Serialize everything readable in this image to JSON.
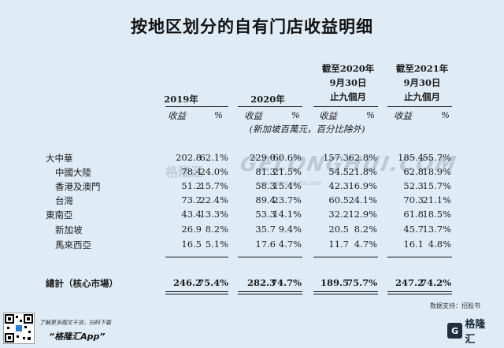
{
  "title": "按地区划分的自有门店收益明细",
  "periods": {
    "p2019": "2019年",
    "p2020": "2020年",
    "p9m2020": [
      "截至2020年",
      "9月30日",
      "止九個月"
    ],
    "p9m2021": [
      "截至2021年",
      "9月30日",
      "止九個月"
    ]
  },
  "subheaders": {
    "revenue": "收益",
    "percent": "%"
  },
  "units_note": "(新加坡百萬元，百分比除外)",
  "rows": [
    {
      "label": "大中華",
      "values": [
        "202.8",
        "62.1%",
        "229.0",
        "60.6%",
        "157.3",
        "62.8%",
        "185.4",
        "55.7%"
      ]
    },
    {
      "label": "中國大陸",
      "values": [
        "78.4",
        "24.0%",
        "81.3",
        "21.5%",
        "54.5",
        "21.8%",
        "62.8",
        "18.9%"
      ]
    },
    {
      "label": "香港及澳門",
      "values": [
        "51.2",
        "15.7%",
        "58.3",
        "15.4%",
        "42.3",
        "16.9%",
        "52.3",
        "15.7%"
      ]
    },
    {
      "label": "台灣",
      "values": [
        "73.2",
        "22.4%",
        "89.4",
        "23.7%",
        "60.5",
        "24.1%",
        "70.3",
        "21.1%"
      ]
    },
    {
      "label": "東南亞",
      "values": [
        "43.4",
        "13.3%",
        "53.3",
        "14.1%",
        "32.2",
        "12.9%",
        "61.8",
        "18.5%"
      ]
    },
    {
      "label": "新加坡",
      "values": [
        "26.9",
        "8.2%",
        "35.7",
        "9.4%",
        "20.5",
        "8.2%",
        "45.7",
        "13.7%"
      ]
    },
    {
      "label": "馬來西亞",
      "values": [
        "16.5",
        "5.1%",
        "17.6",
        "4.7%",
        "11.7",
        "4.7%",
        "16.1",
        "4.8%"
      ]
    }
  ],
  "total": {
    "label": "總計（核心市場）",
    "values": [
      "246.2",
      "75.4%",
      "282.3",
      "74.7%",
      "189.5",
      "75.7%",
      "247.2",
      "74.2%"
    ]
  },
  "source": "数据支持：招股书",
  "watermark": {
    "main": "GELONGHUI.COM",
    "small": "www.gogudata.com",
    "logo": "格隆汇"
  },
  "footer": {
    "promo_line1": "了解更多图文干货，扫码下载",
    "promo_line2": "“格隆汇App”",
    "brand": "格隆汇",
    "brand_mark": "G"
  }
}
